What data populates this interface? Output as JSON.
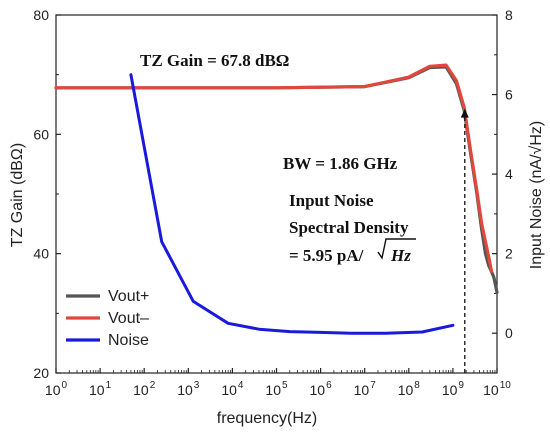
{
  "chart_data": {
    "type": "line",
    "title": "",
    "xlabel": "frequency(Hz)",
    "ylabel": "TZ Gain (dBΩ)",
    "y2label": "Input Noise (nA/√Hz)",
    "xscale": "log",
    "xlim": [
      1,
      10000000000
    ],
    "ylim": [
      20,
      80
    ],
    "y2lim": [
      -1,
      8
    ],
    "x_tick_labels": [
      {
        "base": "10",
        "exp": "0"
      },
      {
        "base": "10",
        "exp": "1"
      },
      {
        "base": "10",
        "exp": "2"
      },
      {
        "base": "10",
        "exp": "3"
      },
      {
        "base": "10",
        "exp": "4"
      },
      {
        "base": "10",
        "exp": "5"
      },
      {
        "base": "10",
        "exp": "6"
      },
      {
        "base": "10",
        "exp": "7"
      },
      {
        "base": "10",
        "exp": "8"
      },
      {
        "base": "10",
        "exp": "9"
      },
      {
        "base": "10",
        "exp": "10"
      }
    ],
    "y_tick_labels": [
      "20",
      "40",
      "60",
      "80"
    ],
    "y2_tick_labels": [
      "0",
      "2",
      "4",
      "6",
      "8"
    ],
    "grid": false,
    "legend_position": "bottom-left",
    "series": [
      {
        "name": "Vout+",
        "color": "#555555",
        "axis": "left",
        "x": [
          1,
          100000,
          10000000,
          100000000,
          300000000,
          700000000,
          1200000000,
          1800000000,
          2500000000,
          3500000000,
          4500000000,
          5500000000,
          6500000000,
          7500000000,
          8500000000,
          10000000000
        ],
        "y": [
          67.8,
          67.8,
          68.0,
          69.5,
          71.2,
          71.3,
          68.5,
          64.0,
          57.0,
          50.0,
          44.0,
          40.0,
          38.0,
          37.0,
          36.0,
          33.5
        ]
      },
      {
        "name": "Vout–",
        "color": "#e0483d",
        "axis": "left",
        "x": [
          1,
          100000,
          10000000,
          100000000,
          300000000,
          700000000,
          1200000000,
          1800000000,
          2500000000,
          3500000000,
          4500000000,
          5500000000,
          6500000000,
          7500000000
        ],
        "y": [
          67.8,
          67.8,
          68.0,
          69.6,
          71.4,
          71.6,
          69.0,
          64.5,
          57.5,
          50.5,
          45.0,
          42.0,
          39.5,
          37.0
        ]
      },
      {
        "name": "Noise",
        "color": "#1a1adb",
        "axis": "right",
        "x": [
          50,
          250,
          1300,
          8000,
          40000,
          200000,
          1000000,
          5000000,
          30000000,
          200000000,
          1000000000
        ],
        "y": [
          6.5,
          2.3,
          0.8,
          0.25,
          0.1,
          0.04,
          0.02,
          0.0,
          0.0,
          0.03,
          0.2
        ]
      }
    ],
    "annotations": {
      "gain": "TZ Gain = 67.8 dBΩ",
      "bw": "BW = 1.86 GHz",
      "noise_line1": "Input Noise",
      "noise_line2": "Spectral Density",
      "noise_line3_pre": "= 5.95 pA/",
      "noise_line3_var": "Hz",
      "bw_marker_x": 1860000000
    }
  }
}
